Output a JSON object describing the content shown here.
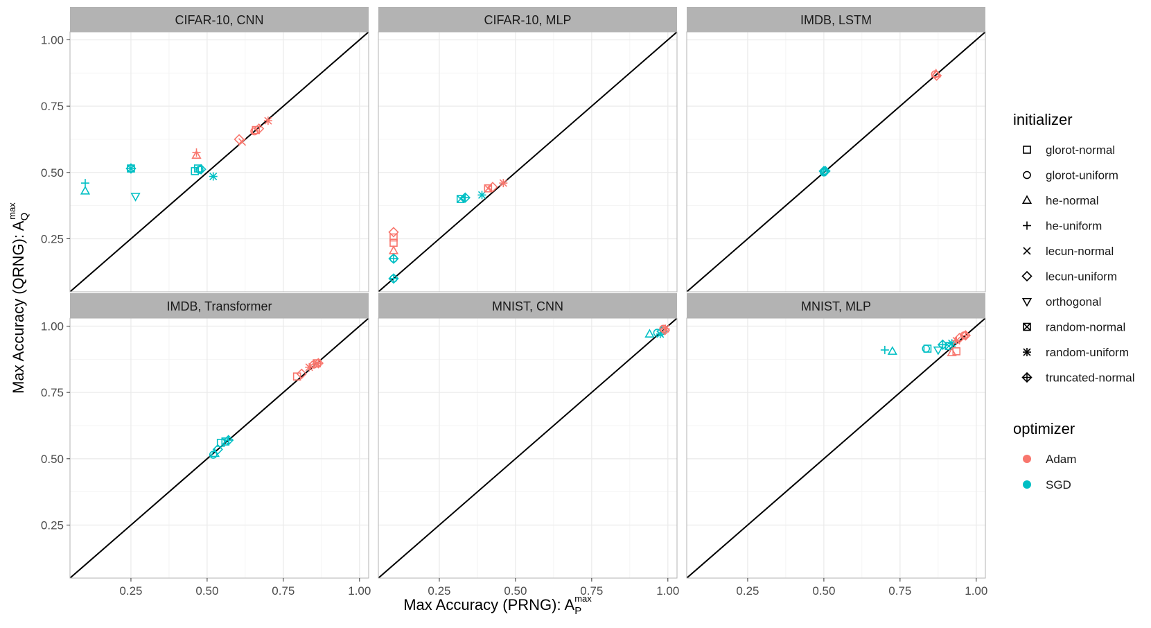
{
  "chart_data": {
    "type": "scatter",
    "xlabel": "Max Accuracy (PRNG): ",
    "xlabel_math": {
      "base": "A",
      "sub": "P",
      "sup": "max"
    },
    "ylabel": "Max Accuracy (QRNG): ",
    "ylabel_math": {
      "base": "A",
      "sub": "Q",
      "sup": "max"
    },
    "xlim": [
      0.05,
      1.03
    ],
    "ylim": [
      0.05,
      1.03
    ],
    "x_ticks": [
      "0.25",
      "0.50",
      "0.75",
      "1.00"
    ],
    "y_ticks": [
      "0.25",
      "0.50",
      "0.75",
      "1.00"
    ],
    "reference_line": "y = x",
    "grid": true,
    "legend_placement": "right",
    "colors": {
      "Adam": "#F8766D",
      "SGD": "#00BFC4",
      "strip": "#b3b3b3",
      "grid": "#ebebeb",
      "panel_border": "#b3b3b3"
    },
    "legend": {
      "initializer": {
        "title": "initializer",
        "items": [
          {
            "label": "glorot-normal",
            "shape": "square"
          },
          {
            "label": "glorot-uniform",
            "shape": "circle"
          },
          {
            "label": "he-normal",
            "shape": "triangle"
          },
          {
            "label": "he-uniform",
            "shape": "plus"
          },
          {
            "label": "lecun-normal",
            "shape": "cross"
          },
          {
            "label": "lecun-uniform",
            "shape": "diamond"
          },
          {
            "label": "orthogonal",
            "shape": "triangle-down"
          },
          {
            "label": "random-normal",
            "shape": "square-cross"
          },
          {
            "label": "random-uniform",
            "shape": "asterisk"
          },
          {
            "label": "truncated-normal",
            "shape": "diamond-plus"
          }
        ]
      },
      "optimizer": {
        "title": "optimizer",
        "items": [
          {
            "label": "Adam",
            "color": "#F8766D"
          },
          {
            "label": "SGD",
            "color": "#00BFC4"
          }
        ]
      }
    },
    "panels": [
      {
        "title": "CIFAR-10, CNN",
        "points": [
          {
            "x": 0.1,
            "y": 0.46,
            "init": "he-uniform",
            "opt": "SGD"
          },
          {
            "x": 0.1,
            "y": 0.43,
            "init": "he-normal",
            "opt": "SGD"
          },
          {
            "x": 0.25,
            "y": 0.515,
            "init": "truncated-normal",
            "opt": "SGD"
          },
          {
            "x": 0.25,
            "y": 0.515,
            "init": "random-normal",
            "opt": "SGD"
          },
          {
            "x": 0.265,
            "y": 0.41,
            "init": "orthogonal",
            "opt": "SGD"
          },
          {
            "x": 0.46,
            "y": 0.505,
            "init": "glorot-normal",
            "opt": "SGD"
          },
          {
            "x": 0.47,
            "y": 0.515,
            "init": "glorot-normal",
            "opt": "SGD"
          },
          {
            "x": 0.475,
            "y": 0.51,
            "init": "glorot-uniform",
            "opt": "SGD"
          },
          {
            "x": 0.48,
            "y": 0.512,
            "init": "lecun-uniform",
            "opt": "SGD"
          },
          {
            "x": 0.52,
            "y": 0.485,
            "init": "random-uniform",
            "opt": "SGD"
          },
          {
            "x": 0.465,
            "y": 0.575,
            "init": "he-uniform",
            "opt": "Adam"
          },
          {
            "x": 0.465,
            "y": 0.565,
            "init": "he-normal",
            "opt": "Adam"
          },
          {
            "x": 0.605,
            "y": 0.625,
            "init": "lecun-uniform",
            "opt": "Adam"
          },
          {
            "x": 0.615,
            "y": 0.615,
            "init": "lecun-normal",
            "opt": "Adam"
          },
          {
            "x": 0.655,
            "y": 0.655,
            "init": "glorot-uniform",
            "opt": "Adam"
          },
          {
            "x": 0.66,
            "y": 0.66,
            "init": "glorot-normal",
            "opt": "Adam"
          },
          {
            "x": 0.67,
            "y": 0.665,
            "init": "lecun-uniform",
            "opt": "Adam"
          },
          {
            "x": 0.7,
            "y": 0.695,
            "init": "random-uniform",
            "opt": "Adam"
          }
        ]
      },
      {
        "title": "CIFAR-10, MLP",
        "points": [
          {
            "x": 0.1,
            "y": 0.275,
            "init": "lecun-uniform",
            "opt": "Adam"
          },
          {
            "x": 0.1,
            "y": 0.255,
            "init": "glorot-normal",
            "opt": "Adam"
          },
          {
            "x": 0.1,
            "y": 0.235,
            "init": "glorot-normal",
            "opt": "Adam"
          },
          {
            "x": 0.1,
            "y": 0.205,
            "init": "he-normal",
            "opt": "Adam"
          },
          {
            "x": 0.1,
            "y": 0.175,
            "init": "truncated-normal",
            "opt": "SGD"
          },
          {
            "x": 0.1,
            "y": 0.175,
            "init": "glorot-uniform",
            "opt": "SGD"
          },
          {
            "x": 0.1,
            "y": 0.1,
            "init": "glorot-uniform",
            "opt": "SGD"
          },
          {
            "x": 0.1,
            "y": 0.1,
            "init": "truncated-normal",
            "opt": "SGD"
          },
          {
            "x": 0.32,
            "y": 0.4,
            "init": "random-normal",
            "opt": "SGD"
          },
          {
            "x": 0.335,
            "y": 0.405,
            "init": "truncated-normal",
            "opt": "SGD"
          },
          {
            "x": 0.39,
            "y": 0.415,
            "init": "random-uniform",
            "opt": "SGD"
          },
          {
            "x": 0.41,
            "y": 0.44,
            "init": "random-normal",
            "opt": "Adam"
          },
          {
            "x": 0.425,
            "y": 0.445,
            "init": "lecun-uniform",
            "opt": "Adam"
          },
          {
            "x": 0.46,
            "y": 0.46,
            "init": "random-uniform",
            "opt": "Adam"
          }
        ]
      },
      {
        "title": "IMDB, LSTM",
        "points": [
          {
            "x": 0.865,
            "y": 0.87,
            "init": "glorot-uniform",
            "opt": "Adam"
          },
          {
            "x": 0.87,
            "y": 0.865,
            "init": "lecun-uniform",
            "opt": "Adam"
          },
          {
            "x": 0.868,
            "y": 0.872,
            "init": "he-normal",
            "opt": "Adam"
          },
          {
            "x": 0.5,
            "y": 0.5,
            "init": "glorot-uniform",
            "opt": "SGD"
          },
          {
            "x": 0.505,
            "y": 0.505,
            "init": "lecun-uniform",
            "opt": "SGD"
          },
          {
            "x": 0.5,
            "y": 0.505,
            "init": "truncated-normal",
            "opt": "SGD"
          }
        ]
      },
      {
        "title": "IMDB, Transformer",
        "points": [
          {
            "x": 0.795,
            "y": 0.81,
            "init": "glorot-normal",
            "opt": "Adam"
          },
          {
            "x": 0.81,
            "y": 0.82,
            "init": "lecun-uniform",
            "opt": "Adam"
          },
          {
            "x": 0.835,
            "y": 0.845,
            "init": "random-uniform",
            "opt": "Adam"
          },
          {
            "x": 0.85,
            "y": 0.855,
            "init": "glorot-uniform",
            "opt": "Adam"
          },
          {
            "x": 0.86,
            "y": 0.86,
            "init": "random-normal",
            "opt": "Adam"
          },
          {
            "x": 0.865,
            "y": 0.86,
            "init": "truncated-normal",
            "opt": "Adam"
          },
          {
            "x": 0.52,
            "y": 0.515,
            "init": "glorot-uniform",
            "opt": "SGD"
          },
          {
            "x": 0.525,
            "y": 0.52,
            "init": "he-normal",
            "opt": "SGD"
          },
          {
            "x": 0.535,
            "y": 0.535,
            "init": "lecun-uniform",
            "opt": "SGD"
          },
          {
            "x": 0.545,
            "y": 0.56,
            "init": "glorot-normal",
            "opt": "SGD"
          },
          {
            "x": 0.56,
            "y": 0.565,
            "init": "random-normal",
            "opt": "SGD"
          },
          {
            "x": 0.57,
            "y": 0.57,
            "init": "truncated-normal",
            "opt": "SGD"
          }
        ]
      },
      {
        "title": "MNIST, CNN",
        "points": [
          {
            "x": 0.94,
            "y": 0.97,
            "init": "he-normal",
            "opt": "SGD"
          },
          {
            "x": 0.965,
            "y": 0.975,
            "init": "glorot-uniform",
            "opt": "SGD"
          },
          {
            "x": 0.975,
            "y": 0.97,
            "init": "random-uniform",
            "opt": "SGD"
          },
          {
            "x": 0.98,
            "y": 0.98,
            "init": "lecun-uniform",
            "opt": "SGD"
          },
          {
            "x": 0.985,
            "y": 0.99,
            "init": "glorot-uniform",
            "opt": "Adam"
          },
          {
            "x": 0.99,
            "y": 0.985,
            "init": "lecun-uniform",
            "opt": "Adam"
          },
          {
            "x": 0.992,
            "y": 0.99,
            "init": "random-uniform",
            "opt": "Adam"
          }
        ]
      },
      {
        "title": "MNIST, MLP",
        "points": [
          {
            "x": 0.7,
            "y": 0.91,
            "init": "he-uniform",
            "opt": "SGD"
          },
          {
            "x": 0.725,
            "y": 0.905,
            "init": "he-normal",
            "opt": "SGD"
          },
          {
            "x": 0.835,
            "y": 0.915,
            "init": "glorot-uniform",
            "opt": "SGD"
          },
          {
            "x": 0.84,
            "y": 0.915,
            "init": "glorot-normal",
            "opt": "SGD"
          },
          {
            "x": 0.875,
            "y": 0.91,
            "init": "orthogonal",
            "opt": "SGD"
          },
          {
            "x": 0.89,
            "y": 0.93,
            "init": "truncated-normal",
            "opt": "SGD"
          },
          {
            "x": 0.91,
            "y": 0.925,
            "init": "random-normal",
            "opt": "SGD"
          },
          {
            "x": 0.92,
            "y": 0.935,
            "init": "random-uniform",
            "opt": "SGD"
          },
          {
            "x": 0.92,
            "y": 0.9,
            "init": "he-normal",
            "opt": "Adam"
          },
          {
            "x": 0.935,
            "y": 0.905,
            "init": "glorot-normal",
            "opt": "Adam"
          },
          {
            "x": 0.935,
            "y": 0.945,
            "init": "random-uniform",
            "opt": "Adam"
          },
          {
            "x": 0.945,
            "y": 0.955,
            "init": "lecun-uniform",
            "opt": "Adam"
          },
          {
            "x": 0.96,
            "y": 0.965,
            "init": "glorot-uniform",
            "opt": "Adam"
          },
          {
            "x": 0.965,
            "y": 0.965,
            "init": "truncated-normal",
            "opt": "Adam"
          }
        ]
      }
    ]
  }
}
